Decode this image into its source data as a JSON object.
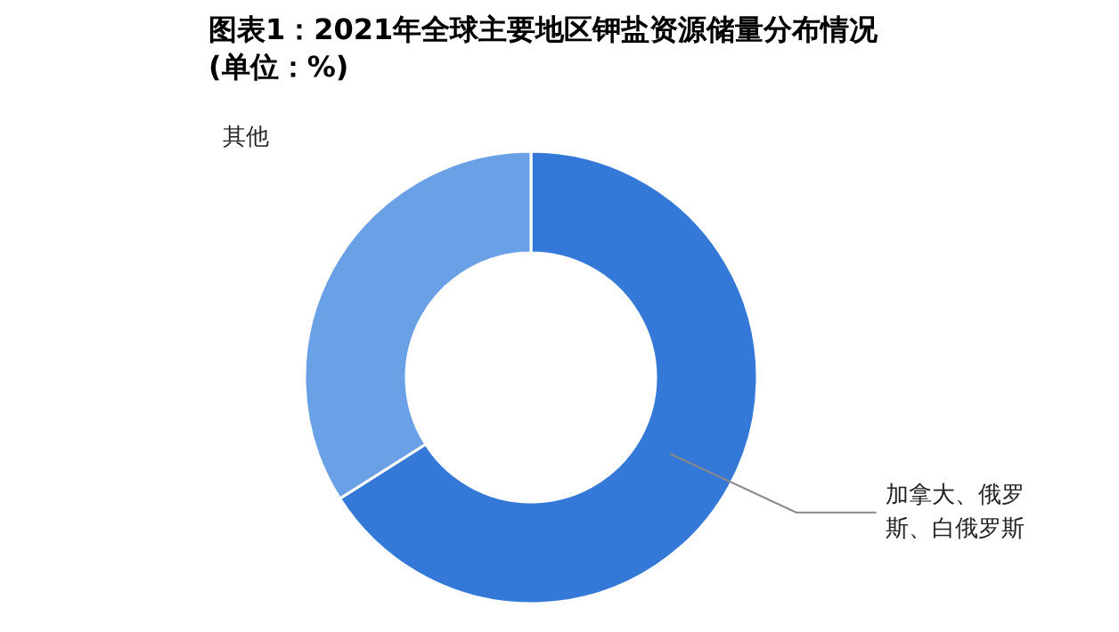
{
  "chart_data": {
    "type": "donut",
    "title": "图表1：2021年全球主要地区钾盐资源储量分布情况(单位：%)",
    "categories": [
      "加拿大、俄罗斯、白俄罗斯",
      "其他"
    ],
    "values": [
      66,
      34
    ],
    "colors": [
      "#3478d8",
      "#6aa0e6"
    ]
  }
}
